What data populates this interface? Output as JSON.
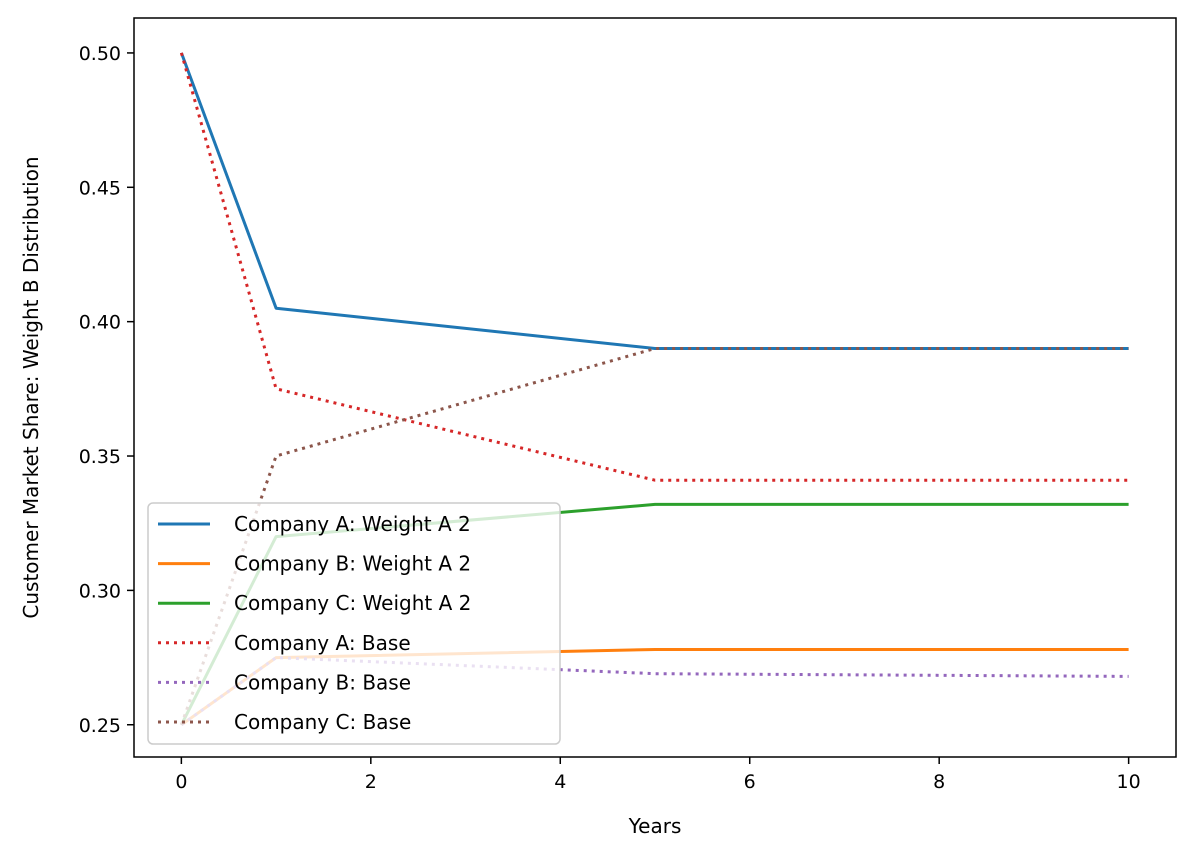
{
  "chart_data": {
    "type": "line",
    "title": "",
    "xlabel": "Years",
    "ylabel": "Customer Market Share: Weight B Distribution",
    "xlim": [
      -0.5,
      10.5
    ],
    "ylim": [
      0.238,
      0.513
    ],
    "xticks": [
      0,
      2,
      4,
      6,
      8,
      10
    ],
    "xtick_labels": [
      "0",
      "2",
      "4",
      "6",
      "8",
      "10"
    ],
    "yticks": [
      0.25,
      0.3,
      0.35,
      0.4,
      0.45,
      0.5
    ],
    "ytick_labels": [
      "0.25",
      "0.30",
      "0.35",
      "0.40",
      "0.45",
      "0.50"
    ],
    "grid": false,
    "legend_position": "lower-left",
    "series": [
      {
        "name": "Company A: Weight A 2",
        "color": "#1f77b4",
        "style": "solid",
        "x": [
          0,
          1,
          5,
          10
        ],
        "y": [
          0.5,
          0.405,
          0.39,
          0.39
        ]
      },
      {
        "name": "Company B: Weight A 2",
        "color": "#ff7f0e",
        "style": "solid",
        "x": [
          0,
          1,
          5,
          10
        ],
        "y": [
          0.25,
          0.275,
          0.278,
          0.278
        ]
      },
      {
        "name": "Company C: Weight A 2",
        "color": "#2ca02c",
        "style": "solid",
        "x": [
          0,
          1,
          5,
          10
        ],
        "y": [
          0.25,
          0.32,
          0.332,
          0.332
        ]
      },
      {
        "name": "Company A: Base",
        "color": "#d62728",
        "style": "dotted",
        "x": [
          0,
          1,
          5,
          10
        ],
        "y": [
          0.5,
          0.375,
          0.341,
          0.341
        ]
      },
      {
        "name": "Company B: Base",
        "color": "#9467bd",
        "style": "dotted",
        "x": [
          0,
          1,
          5,
          10
        ],
        "y": [
          0.25,
          0.275,
          0.269,
          0.268
        ]
      },
      {
        "name": "Company C: Base",
        "color": "#8c564b",
        "style": "dotted",
        "x": [
          0,
          1,
          5,
          10
        ],
        "y": [
          0.25,
          0.35,
          0.39,
          0.39
        ]
      }
    ]
  }
}
